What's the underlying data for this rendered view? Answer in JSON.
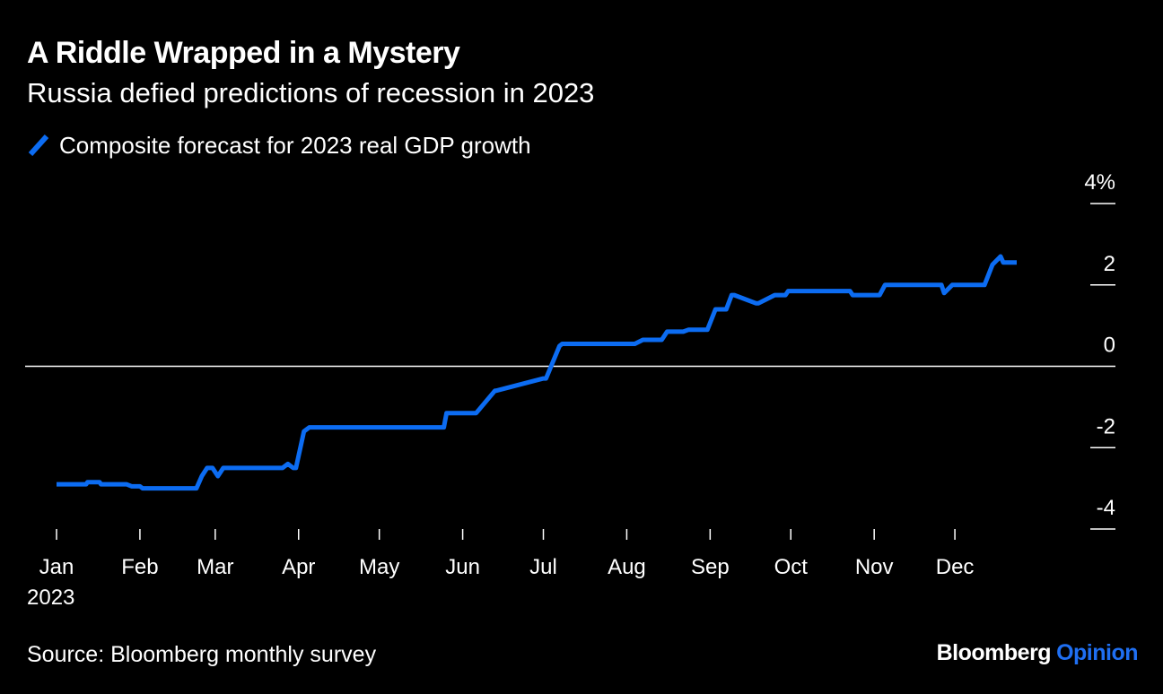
{
  "header": {
    "title": "A Riddle Wrapped in a Mystery",
    "subtitle": "Russia defied predictions of recession in 2023"
  },
  "legend": {
    "label": "Composite forecast for 2023 real GDP growth"
  },
  "footer": {
    "source": "Source: Bloomberg monthly survey",
    "brand_main": "Bloomberg",
    "brand_accent": "Opinion"
  },
  "colors": {
    "background": "#000000",
    "text": "#ffffff",
    "series": "#0c6cf2",
    "brand_accent": "#1f6ff2",
    "zero_line": "#ffffff"
  },
  "chart_data": {
    "type": "line",
    "title": "A Riddle Wrapped in a Mystery",
    "subtitle": "Russia defied predictions of recession in 2023",
    "xlabel": "",
    "ylabel": "",
    "x_unit": "day of year 2023",
    "xlim": [
      0,
      365
    ],
    "ylim": [
      -4.5,
      4.5
    ],
    "y_ticks": [
      {
        "value": 4,
        "label": "4%"
      },
      {
        "value": 2,
        "label": "2"
      },
      {
        "value": 0,
        "label": "0"
      },
      {
        "value": -2,
        "label": "-2"
      },
      {
        "value": -4,
        "label": "-4"
      }
    ],
    "x_ticks": [
      {
        "value": 0,
        "label": "Jan"
      },
      {
        "value": 31,
        "label": "Feb"
      },
      {
        "value": 59,
        "label": "Mar"
      },
      {
        "value": 90,
        "label": "Apr"
      },
      {
        "value": 120,
        "label": "May"
      },
      {
        "value": 151,
        "label": "Jun"
      },
      {
        "value": 181,
        "label": "Jul"
      },
      {
        "value": 212,
        "label": "Aug"
      },
      {
        "value": 243,
        "label": "Sep"
      },
      {
        "value": 273,
        "label": "Oct"
      },
      {
        "value": 304,
        "label": "Nov"
      },
      {
        "value": 334,
        "label": "Dec"
      }
    ],
    "year_label": "2023",
    "grid": false,
    "zero_line": true,
    "legend_position": "top-left",
    "series": [
      {
        "name": "Composite forecast for 2023 real GDP growth",
        "x": [
          0,
          11,
          11.5,
          16,
          16.5,
          26,
          28,
          31,
          32,
          52,
          54,
          56,
          58,
          59,
          60,
          61,
          62,
          65,
          84,
          86,
          87,
          88,
          89,
          92,
          94,
          108,
          130,
          133,
          144,
          145,
          151,
          154,
          156,
          163,
          163.5,
          181,
          182,
          187,
          188,
          215,
          218,
          225,
          227,
          233,
          235,
          242,
          245,
          249,
          251,
          252,
          260,
          261,
          267,
          271,
          272,
          295,
          296,
          306,
          308,
          310,
          327,
          329,
          330,
          333,
          345,
          348,
          351,
          352,
          357
        ],
        "y": [
          -2.9,
          -2.9,
          -2.85,
          -2.85,
          -2.9,
          -2.9,
          -2.95,
          -2.95,
          -3.0,
          -3.0,
          -2.7,
          -2.5,
          -2.5,
          -2.6,
          -2.7,
          -2.6,
          -2.5,
          -2.5,
          -2.5,
          -2.4,
          -2.45,
          -2.5,
          -2.5,
          -1.6,
          -1.5,
          -1.5,
          -1.5,
          -1.5,
          -1.5,
          -1.15,
          -1.15,
          -1.15,
          -1.15,
          -0.6,
          -0.6,
          -0.3,
          -0.3,
          0.5,
          0.55,
          0.55,
          0.65,
          0.65,
          0.85,
          0.85,
          0.9,
          0.9,
          1.4,
          1.4,
          1.75,
          1.75,
          1.55,
          1.55,
          1.75,
          1.75,
          1.85,
          1.85,
          1.75,
          1.75,
          2.0,
          2.0,
          2.0,
          2.0,
          1.8,
          2.0,
          2.0,
          2.5,
          2.7,
          2.55,
          2.55
        ]
      }
    ]
  }
}
